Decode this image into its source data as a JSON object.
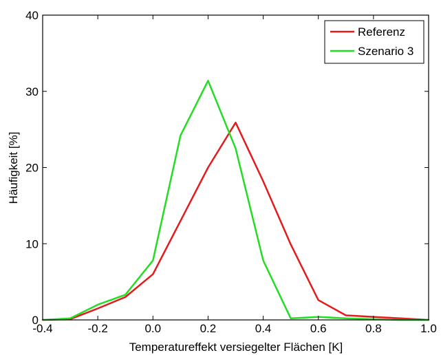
{
  "chart_data": {
    "type": "line",
    "title": "",
    "xlabel": "Temperatureffekt versiegelter Flächen [K]",
    "ylabel": "Häufigkeit [%]",
    "xlim": [
      -0.4,
      1.0
    ],
    "ylim": [
      0,
      40
    ],
    "xticks": [
      -0.4,
      -0.2,
      0.0,
      0.2,
      0.4,
      0.6,
      0.8,
      1.0
    ],
    "xtick_labels": [
      "-0.4",
      "-0.2",
      "0.0",
      "0.2",
      "0.4",
      "0.6",
      "0.8",
      "1.0"
    ],
    "yticks": [
      0,
      10,
      20,
      30,
      40
    ],
    "ytick_labels": [
      "0",
      "10",
      "20",
      "30",
      "40"
    ],
    "grid": false,
    "legend_position": "top-right",
    "series": [
      {
        "name": "Referenz",
        "color": "#e41a1c",
        "x": [
          -0.4,
          -0.3,
          -0.2,
          -0.1,
          0.0,
          0.1,
          0.2,
          0.3,
          0.4,
          0.5,
          0.6,
          0.7,
          0.8,
          0.9,
          1.0
        ],
        "y": [
          0.0,
          0.1,
          1.5,
          3.0,
          6.0,
          13.0,
          20.0,
          25.9,
          18.2,
          9.9,
          2.6,
          0.6,
          0.4,
          0.2,
          0.0
        ]
      },
      {
        "name": "Szenario 3",
        "color": "#22dd22",
        "x": [
          -0.4,
          -0.3,
          -0.2,
          -0.1,
          0.0,
          0.1,
          0.2,
          0.3,
          0.4,
          0.5,
          0.6,
          0.7,
          0.8,
          0.9,
          1.0
        ],
        "y": [
          0.0,
          0.2,
          2.0,
          3.3,
          7.8,
          24.2,
          31.4,
          22.5,
          7.8,
          0.2,
          0.4,
          0.2,
          0.1,
          0.0,
          0.0
        ]
      }
    ]
  }
}
